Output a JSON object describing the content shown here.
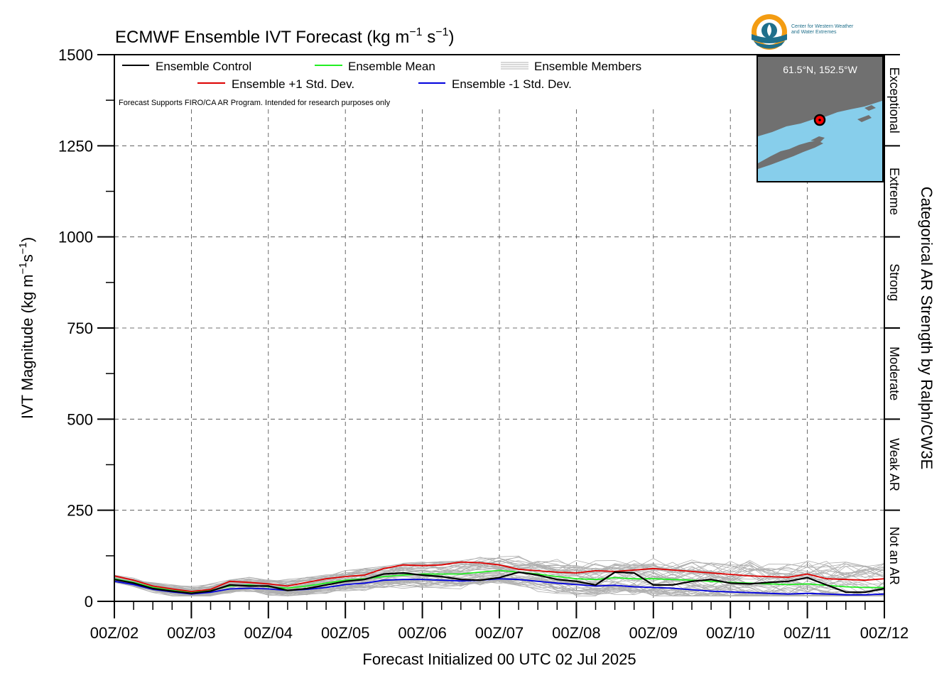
{
  "chart_data": {
    "type": "line",
    "title": "ECMWF Ensemble IVT Forecast (kg m",
    "title_sup1": "−1",
    "title_mid": " s",
    "title_sup2": "−1",
    "title_end": ")",
    "xlabel": "Forecast Initialized 00 UTC 02 Jul 2025",
    "ylabel_parts": [
      "IVT Magnitude (kg m",
      "−1",
      "s",
      "−1",
      ")"
    ],
    "right_label": "Categorical AR Strength by Ralph/CW3E",
    "ylim": [
      0,
      1500
    ],
    "yticks": [
      "0",
      "250",
      "500",
      "750",
      "1000",
      "1250",
      "1500"
    ],
    "ytick_values": [
      0,
      250,
      500,
      750,
      1000,
      1250,
      1500
    ],
    "xlim": [
      0,
      10
    ],
    "xticks": [
      "00Z/02",
      "00Z/03",
      "00Z/04",
      "00Z/05",
      "00Z/06",
      "00Z/07",
      "00Z/08",
      "00Z/09",
      "00Z/10",
      "00Z/11",
      "00Z/12"
    ],
    "grid": true,
    "legend_placement": "top-left",
    "note": "Forecast Supports FIRO/CA AR Program. Intended for research purposes only",
    "categories": [
      {
        "label": "Not an AR",
        "from": 0,
        "to": 250
      },
      {
        "label": "Weak AR",
        "from": 250,
        "to": 500
      },
      {
        "label": "Moderate",
        "from": 500,
        "to": 750
      },
      {
        "label": "Strong",
        "from": 750,
        "to": 1000
      },
      {
        "label": "Extreme",
        "from": 1000,
        "to": 1250
      },
      {
        "label": "Exceptional",
        "from": 1250,
        "to": 1500
      }
    ],
    "x": [
      0,
      0.25,
      0.5,
      0.75,
      1,
      1.25,
      1.5,
      1.75,
      2,
      2.25,
      2.5,
      2.75,
      3,
      3.25,
      3.5,
      3.75,
      4,
      4.25,
      4.5,
      4.75,
      5,
      5.25,
      5.5,
      5.75,
      6,
      6.25,
      6.5,
      6.75,
      7,
      7.25,
      7.5,
      7.75,
      8,
      8.25,
      8.5,
      8.75,
      9,
      9.25,
      9.5,
      9.75,
      10
    ],
    "series": [
      {
        "name": "Ensemble Control",
        "color": "#000000",
        "values": [
          60,
          50,
          35,
          28,
          22,
          28,
          45,
          42,
          42,
          30,
          35,
          45,
          55,
          60,
          75,
          78,
          72,
          68,
          60,
          58,
          65,
          80,
          72,
          60,
          55,
          45,
          80,
          78,
          45,
          45,
          55,
          60,
          50,
          48,
          52,
          55,
          65,
          45,
          25,
          25,
          35
        ]
      },
      {
        "name": "Ensemble Mean",
        "color": "#22ee22",
        "values": [
          62,
          52,
          38,
          30,
          24,
          30,
          42,
          45,
          40,
          36,
          42,
          50,
          58,
          62,
          68,
          72,
          75,
          75,
          75,
          80,
          85,
          80,
          75,
          68,
          62,
          60,
          65,
          62,
          62,
          60,
          58,
          55,
          52,
          50,
          48,
          46,
          48,
          44,
          40,
          38,
          38
        ]
      },
      {
        "name": "Ensemble +1 Std. Dev.",
        "color": "#dd0000",
        "values": [
          70,
          58,
          42,
          34,
          27,
          33,
          55,
          52,
          48,
          42,
          52,
          62,
          68,
          72,
          90,
          100,
          98,
          100,
          108,
          106,
          100,
          88,
          84,
          80,
          78,
          84,
          82,
          86,
          90,
          86,
          82,
          78,
          74,
          70,
          68,
          66,
          75,
          62,
          60,
          58,
          62
        ]
      },
      {
        "name": "Ensemble -1 Std. Dev.",
        "color": "#0000dd",
        "values": [
          55,
          46,
          33,
          26,
          20,
          25,
          34,
          36,
          34,
          30,
          33,
          38,
          46,
          50,
          58,
          60,
          60,
          58,
          56,
          58,
          62,
          60,
          55,
          50,
          46,
          42,
          44,
          40,
          38,
          36,
          32,
          28,
          26,
          24,
          22,
          20,
          22,
          20,
          18,
          18,
          20
        ]
      }
    ],
    "members_label": "Ensemble Members",
    "members_color": "#b0b0b0",
    "members_summary": {
      "min_approx": 15,
      "max_approx": 170
    }
  },
  "inset": {
    "label": "61.5°N, 152.5°W",
    "land_color": "#707070",
    "water_color": "#87ceeb",
    "marker_color": "#ff0000"
  },
  "logo": {
    "line1": "Center for Western Weather",
    "line2": "and Water Extremes",
    "accent": "#f39c12",
    "brand": "#1f6f8b"
  }
}
